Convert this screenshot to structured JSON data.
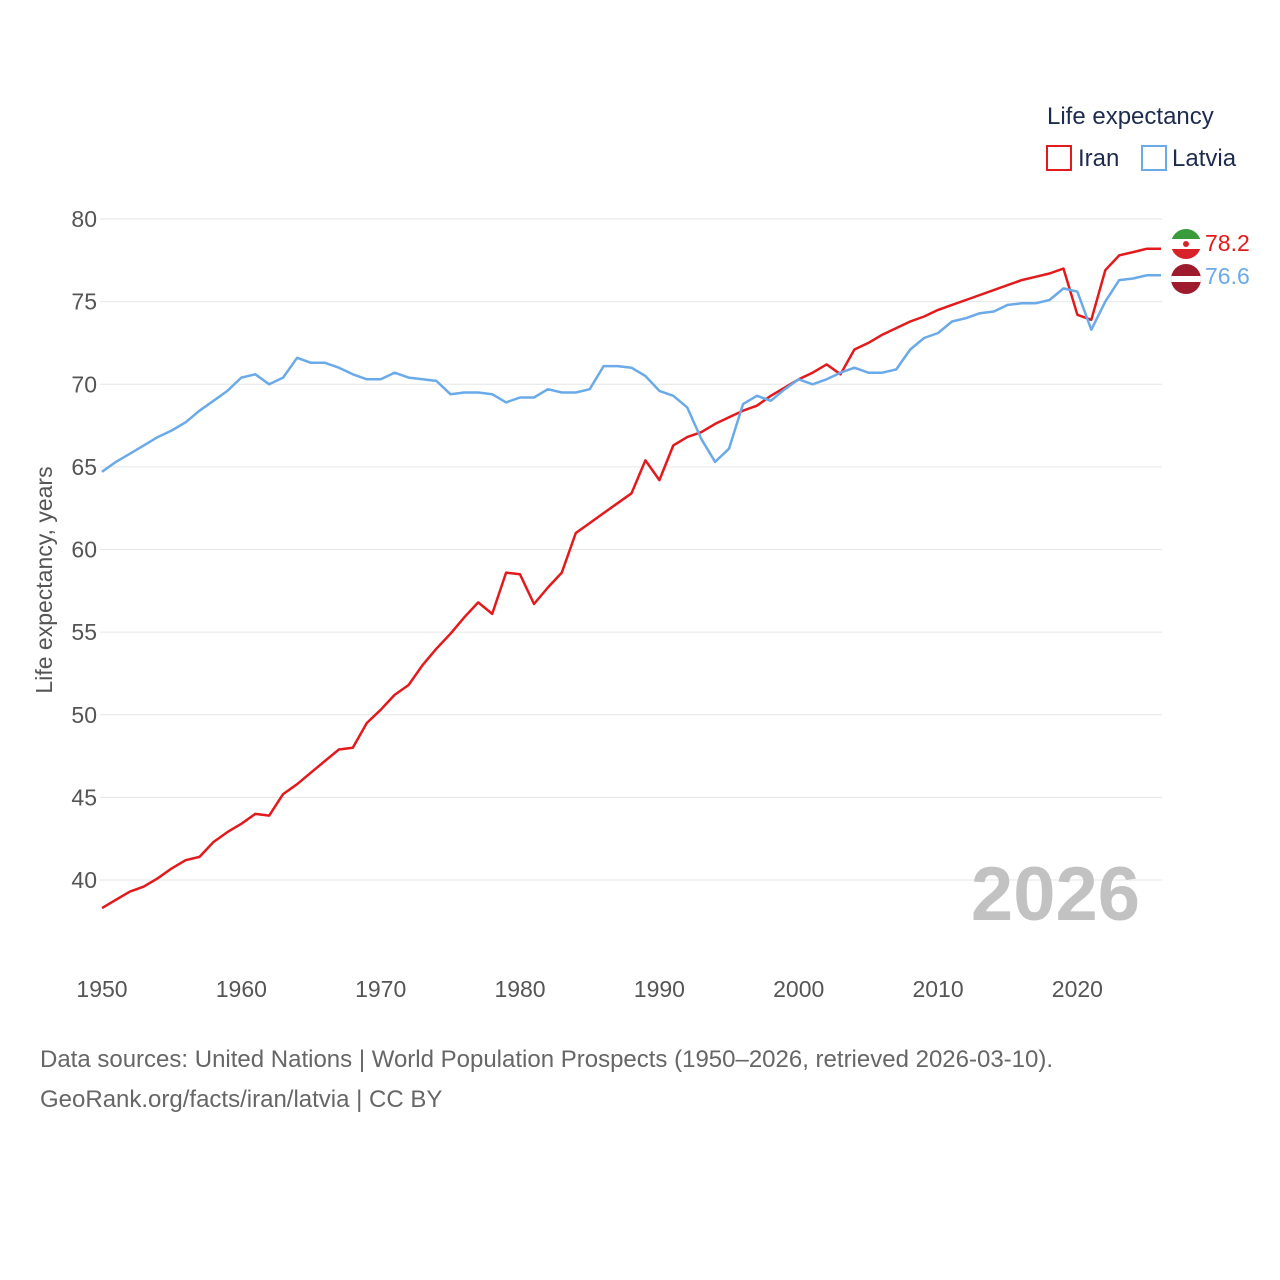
{
  "chart_data": {
    "type": "line",
    "title": "",
    "legend_title": "Life expectancy",
    "ylabel": "Life expectancy, years",
    "xlabel": "",
    "xlim": [
      1950,
      2026
    ],
    "ylim": [
      37,
      81
    ],
    "x_ticks": [
      1950,
      1960,
      1970,
      1980,
      1990,
      2000,
      2010,
      2020
    ],
    "y_ticks": [
      40,
      45,
      50,
      55,
      60,
      65,
      70,
      75,
      80
    ],
    "year_overlay": "2026",
    "x": [
      1950,
      1951,
      1952,
      1953,
      1954,
      1955,
      1956,
      1957,
      1958,
      1959,
      1960,
      1961,
      1962,
      1963,
      1964,
      1965,
      1966,
      1967,
      1968,
      1969,
      1970,
      1971,
      1972,
      1973,
      1974,
      1975,
      1976,
      1977,
      1978,
      1979,
      1980,
      1981,
      1982,
      1983,
      1984,
      1985,
      1986,
      1987,
      1988,
      1989,
      1990,
      1991,
      1992,
      1993,
      1994,
      1995,
      1996,
      1997,
      1998,
      1999,
      2000,
      2001,
      2002,
      2003,
      2004,
      2005,
      2006,
      2007,
      2008,
      2009,
      2010,
      2011,
      2012,
      2013,
      2014,
      2015,
      2016,
      2017,
      2018,
      2019,
      2020,
      2021,
      2022,
      2023,
      2024,
      2025,
      2026
    ],
    "series": [
      {
        "name": "Iran",
        "color": "#e31a1c",
        "end_label": "78.2",
        "values": [
          38.3,
          38.8,
          39.3,
          39.6,
          40.1,
          40.7,
          41.2,
          41.4,
          42.3,
          42.9,
          43.4,
          44.0,
          43.9,
          45.2,
          45.8,
          46.5,
          47.2,
          47.9,
          48.0,
          49.5,
          50.3,
          51.2,
          51.8,
          53.0,
          54.0,
          54.9,
          55.9,
          56.8,
          56.1,
          58.6,
          58.5,
          56.7,
          57.7,
          58.6,
          61.0,
          61.6,
          62.2,
          62.8,
          63.4,
          65.4,
          64.2,
          66.3,
          66.8,
          67.1,
          67.6,
          68.0,
          68.4,
          68.7,
          69.3,
          69.8,
          70.3,
          70.7,
          71.2,
          70.6,
          72.1,
          72.5,
          73.0,
          73.4,
          73.8,
          74.1,
          74.5,
          74.8,
          75.1,
          75.4,
          75.7,
          76.0,
          76.3,
          76.5,
          76.7,
          77.0,
          74.2,
          73.9,
          76.9,
          77.8,
          78.0,
          78.2,
          78.2
        ]
      },
      {
        "name": "Latvia",
        "color": "#6baae8",
        "end_label": "76.6",
        "values": [
          64.7,
          65.3,
          65.8,
          66.3,
          66.8,
          67.2,
          67.7,
          68.4,
          69.0,
          69.6,
          70.4,
          70.6,
          70.0,
          70.4,
          71.6,
          71.3,
          71.3,
          71.0,
          70.6,
          70.3,
          70.3,
          70.7,
          70.4,
          70.3,
          70.2,
          69.4,
          69.5,
          69.5,
          69.4,
          68.9,
          69.2,
          69.2,
          69.7,
          69.5,
          69.5,
          69.7,
          71.1,
          71.1,
          71.0,
          70.5,
          69.6,
          69.3,
          68.6,
          66.7,
          65.3,
          66.1,
          68.8,
          69.3,
          69.0,
          69.7,
          70.3,
          70.0,
          70.3,
          70.7,
          71.0,
          70.7,
          70.7,
          70.9,
          72.1,
          72.8,
          73.1,
          73.8,
          74.0,
          74.3,
          74.4,
          74.8,
          74.9,
          74.9,
          75.1,
          75.8,
          75.6,
          73.3,
          75.0,
          76.3,
          76.4,
          76.6,
          76.6
        ]
      }
    ]
  },
  "footer": {
    "line1": "Data sources: United Nations | World Population Prospects (1950–2026, retrieved 2026-03-10).",
    "line2": "GeoRank.org/facts/iran/latvia | CC BY"
  },
  "flags": {
    "iran": "iran-flag-icon",
    "latvia": "latvia-flag-icon"
  }
}
